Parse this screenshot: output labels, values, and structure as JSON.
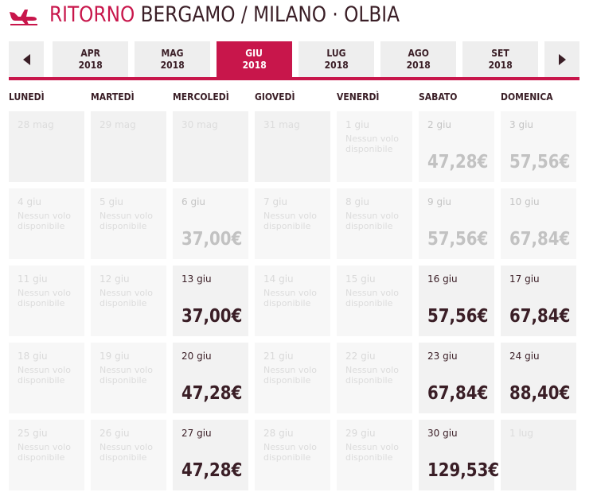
{
  "header": {
    "ritorno": "RITORNO",
    "route": "BERGAMO / MILANO · OLBIA",
    "icon": "plane-landing-icon",
    "accent_color": "#c8164b"
  },
  "months": [
    {
      "month": "APR",
      "year": "2018",
      "active": false
    },
    {
      "month": "MAG",
      "year": "2018",
      "active": false
    },
    {
      "month": "GIU",
      "year": "2018",
      "active": true
    },
    {
      "month": "LUG",
      "year": "2018",
      "active": false
    },
    {
      "month": "AGO",
      "year": "2018",
      "active": false
    },
    {
      "month": "SET",
      "year": "2018",
      "active": false
    }
  ],
  "weekdays": [
    "LUNEDÌ",
    "MARTEDÌ",
    "MERCOLEDÌ",
    "GIOVEDÌ",
    "VENERDÌ",
    "SABATO",
    "DOMENICA"
  ],
  "weeks": [
    [
      {
        "date": "28 mag",
        "state": "empty"
      },
      {
        "date": "29 mag",
        "state": "empty"
      },
      {
        "date": "30 mag",
        "state": "empty"
      },
      {
        "date": "31 mag",
        "state": "empty"
      },
      {
        "date": "1 giu",
        "state": "unavailable",
        "note": "Nessun volo disponibile"
      },
      {
        "date": "2 giu",
        "state": "faded",
        "price": "47,28€"
      },
      {
        "date": "3 giu",
        "state": "faded",
        "price": "57,56€"
      }
    ],
    [
      {
        "date": "4 giu",
        "state": "unavailable",
        "note": "Nessun volo disponibile"
      },
      {
        "date": "5 giu",
        "state": "unavailable",
        "note": "Nessun volo disponibile"
      },
      {
        "date": "6 giu",
        "state": "faded",
        "price": "37,00€"
      },
      {
        "date": "7 giu",
        "state": "unavailable",
        "note": "Nessun volo disponibile"
      },
      {
        "date": "8 giu",
        "state": "unavailable",
        "note": "Nessun volo disponibile"
      },
      {
        "date": "9 giu",
        "state": "faded",
        "price": "57,56€"
      },
      {
        "date": "10 giu",
        "state": "faded",
        "price": "67,84€"
      }
    ],
    [
      {
        "date": "11 giu",
        "state": "unavailable",
        "note": "Nessun volo disponibile"
      },
      {
        "date": "12 giu",
        "state": "unavailable",
        "note": "Nessun volo disponibile"
      },
      {
        "date": "13 giu",
        "state": "active",
        "price": "37,00€"
      },
      {
        "date": "14 giu",
        "state": "unavailable",
        "note": "Nessun volo disponibile"
      },
      {
        "date": "15 giu",
        "state": "unavailable",
        "note": "Nessun volo disponibile"
      },
      {
        "date": "16 giu",
        "state": "active",
        "price": "57,56€"
      },
      {
        "date": "17 giu",
        "state": "active",
        "price": "67,84€"
      }
    ],
    [
      {
        "date": "18 giu",
        "state": "unavailable",
        "note": "Nessun volo disponibile"
      },
      {
        "date": "19 giu",
        "state": "unavailable",
        "note": "Nessun volo disponibile"
      },
      {
        "date": "20 giu",
        "state": "active",
        "price": "47,28€"
      },
      {
        "date": "21 giu",
        "state": "unavailable",
        "note": "Nessun volo disponibile"
      },
      {
        "date": "22 giu",
        "state": "unavailable",
        "note": "Nessun volo disponibile"
      },
      {
        "date": "23 giu",
        "state": "active",
        "price": "67,84€"
      },
      {
        "date": "24 giu",
        "state": "active",
        "price": "88,40€"
      }
    ],
    [
      {
        "date": "25 giu",
        "state": "unavailable",
        "note": "Nessun volo disponibile"
      },
      {
        "date": "26 giu",
        "state": "unavailable",
        "note": "Nessun volo disponibile"
      },
      {
        "date": "27 giu",
        "state": "active",
        "price": "47,28€"
      },
      {
        "date": "28 giu",
        "state": "unavailable",
        "note": "Nessun volo disponibile"
      },
      {
        "date": "29 giu",
        "state": "unavailable",
        "note": "Nessun volo disponibile"
      },
      {
        "date": "30 giu",
        "state": "active",
        "price": "129,53€"
      },
      {
        "date": "1 lug",
        "state": "empty"
      }
    ]
  ]
}
